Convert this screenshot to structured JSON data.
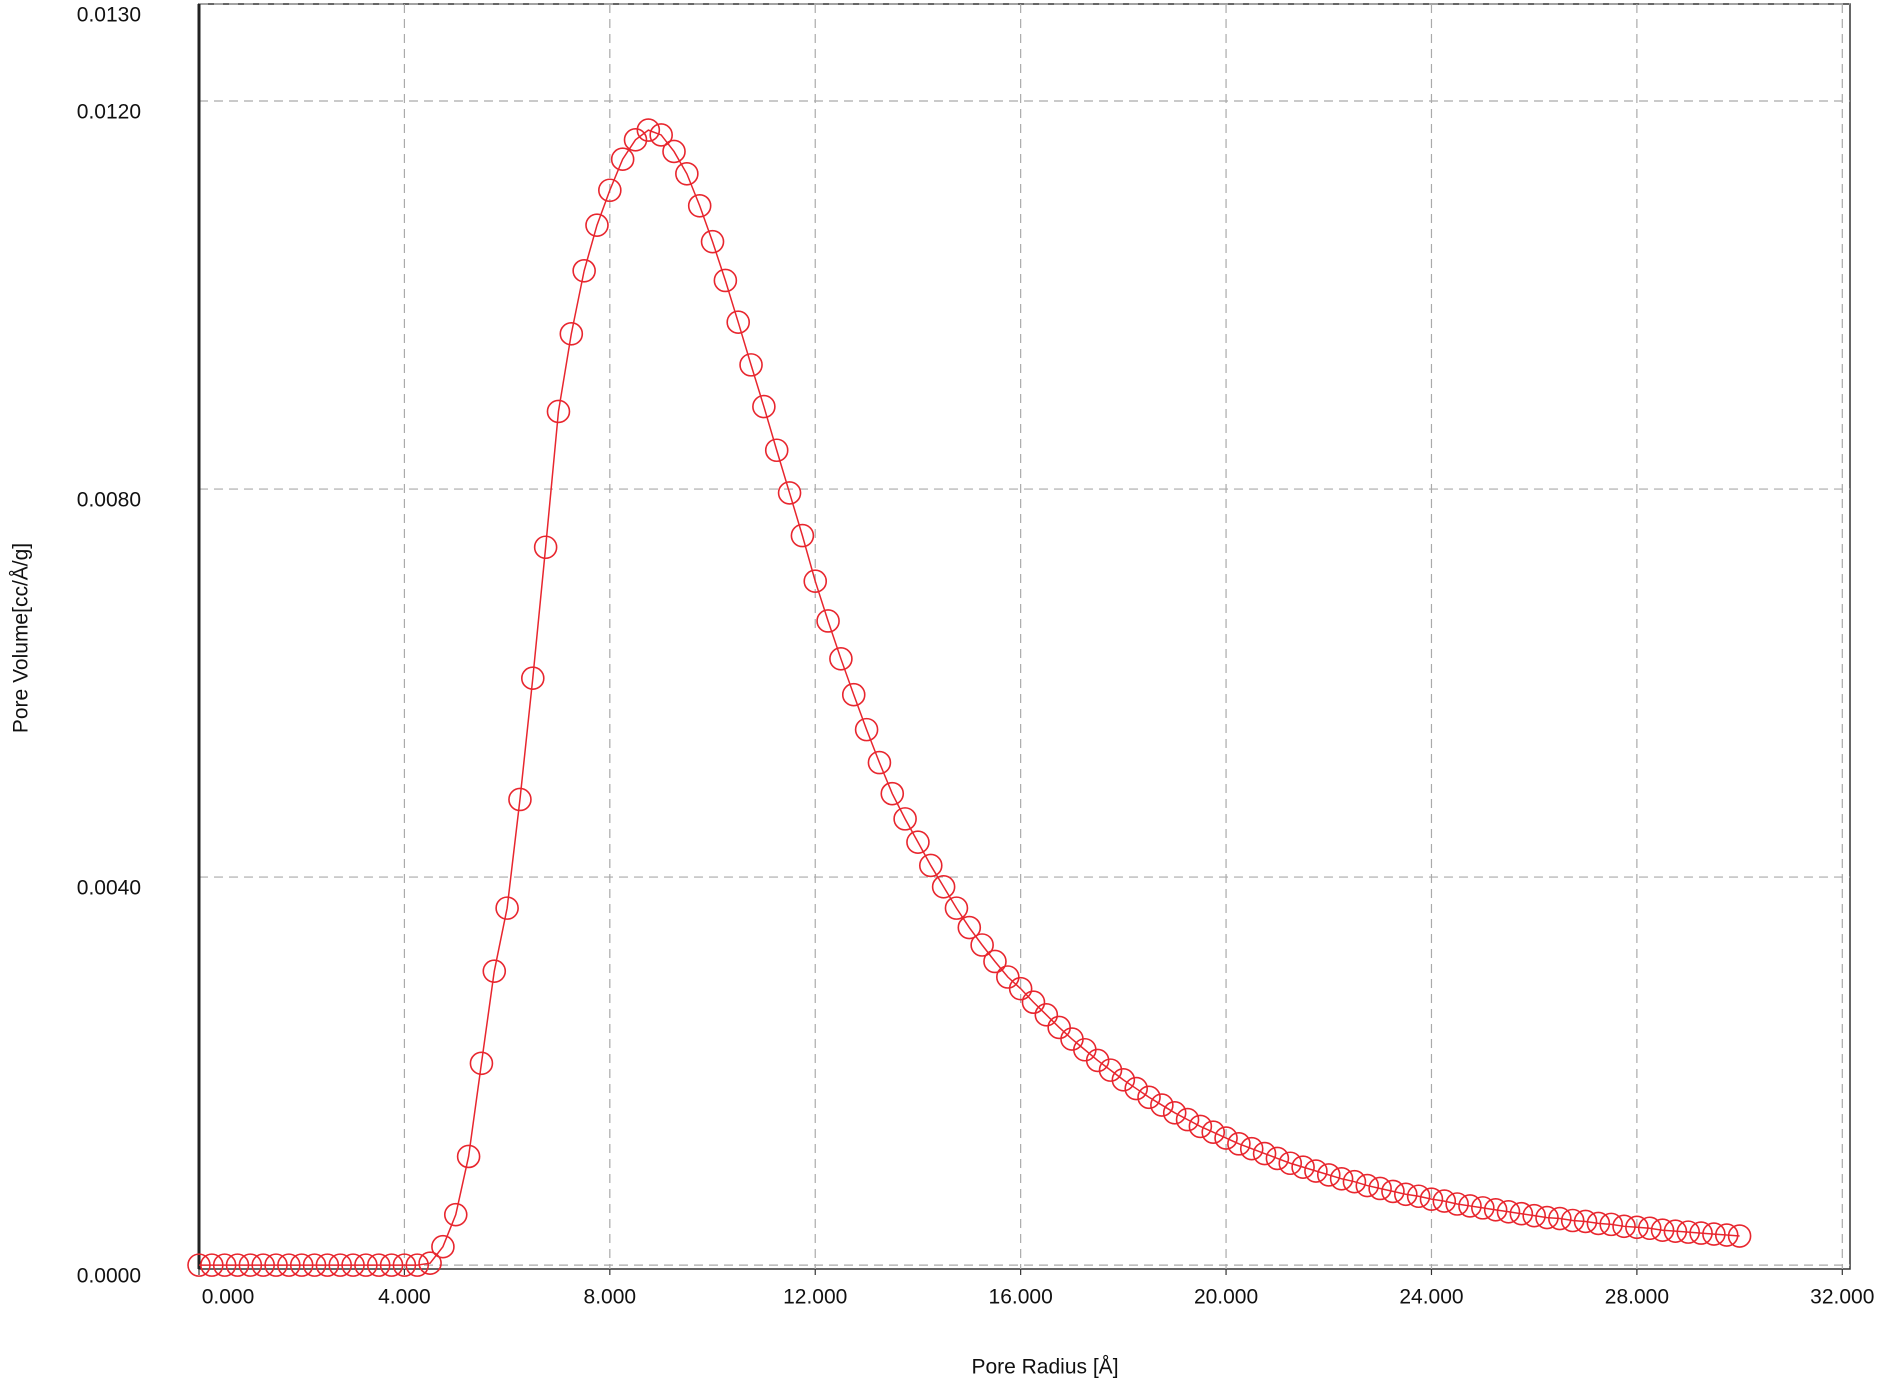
{
  "chart_data": {
    "type": "line-scatter",
    "x_label": "Pore Radius [Å]",
    "y_label": "Pore Volume[cc/Å/g]",
    "xlim": [
      0,
      32.15
    ],
    "ylim": [
      -4e-05,
      0.013
    ],
    "xticks": [
      {
        "value": 0,
        "label": "0.000"
      },
      {
        "value": 4,
        "label": "4.000"
      },
      {
        "value": 8,
        "label": "8.000"
      },
      {
        "value": 12,
        "label": "12.000"
      },
      {
        "value": 16,
        "label": "16.000"
      },
      {
        "value": 20,
        "label": "20.000"
      },
      {
        "value": 24,
        "label": "24.000"
      },
      {
        "value": 28,
        "label": "28.000"
      },
      {
        "value": 32,
        "label": "32.000"
      }
    ],
    "yticks": [
      {
        "value": 0,
        "label": "0.0000"
      },
      {
        "value": 0.004,
        "label": "0.0040"
      },
      {
        "value": 0.008,
        "label": "0.0080"
      },
      {
        "value": 0.012,
        "label": "0.0120"
      },
      {
        "value": 0.013,
        "label": "0.0130"
      }
    ],
    "grid": true,
    "color": "#e8262e",
    "x": [
      0,
      0.25,
      0.5,
      0.75,
      1,
      1.25,
      1.5,
      1.75,
      2,
      2.25,
      2.5,
      2.75,
      3,
      3.25,
      3.5,
      3.75,
      4,
      4.25,
      4.5,
      4.75,
      5,
      5.25,
      5.5,
      5.75,
      6,
      6.25,
      6.5,
      6.75,
      7,
      7.25,
      7.5,
      7.75,
      8,
      8.25,
      8.5,
      8.75,
      9,
      9.25,
      9.5,
      9.75,
      10,
      10.25,
      10.5,
      10.75,
      11,
      11.25,
      11.5,
      11.75,
      12,
      12.25,
      12.5,
      12.75,
      13,
      13.25,
      13.5,
      13.75,
      14,
      14.25,
      14.5,
      14.75,
      15,
      15.25,
      15.5,
      15.75,
      16,
      16.25,
      16.5,
      16.75,
      17,
      17.25,
      17.5,
      17.75,
      18,
      18.25,
      18.5,
      18.75,
      19,
      19.25,
      19.5,
      19.75,
      20,
      20.25,
      20.5,
      20.75,
      21,
      21.25,
      21.5,
      21.75,
      22,
      22.25,
      22.5,
      22.75,
      23,
      23.25,
      23.5,
      23.75,
      24,
      24.25,
      24.5,
      24.75,
      25,
      25.25,
      25.5,
      25.75,
      26,
      26.25,
      26.5,
      26.75,
      27,
      27.25,
      27.5,
      27.75,
      28,
      28.25,
      28.5,
      28.75,
      29,
      29.25,
      29.5,
      29.75,
      30
    ],
    "values": [
      0,
      0,
      0,
      0,
      0,
      0,
      0,
      0,
      0,
      0,
      0,
      0,
      0,
      0,
      0,
      0,
      0,
      0,
      2e-05,
      0.00019,
      0.00052,
      0.00112,
      0.00208,
      0.00303,
      0.00368,
      0.0048,
      0.00605,
      0.0074,
      0.0088,
      0.0096,
      0.01025,
      0.01072,
      0.01108,
      0.0114,
      0.0116,
      0.0117,
      0.01165,
      0.01148,
      0.01125,
      0.01092,
      0.01055,
      0.01015,
      0.00972,
      0.00928,
      0.00885,
      0.0084,
      0.00796,
      0.00752,
      0.00705,
      0.00664,
      0.00625,
      0.00588,
      0.00552,
      0.00518,
      0.00486,
      0.0046,
      0.00436,
      0.00412,
      0.0039,
      0.00368,
      0.00348,
      0.0033,
      0.00313,
      0.00297,
      0.00285,
      0.00271,
      0.00258,
      0.00245,
      0.00233,
      0.00222,
      0.00211,
      0.00201,
      0.00191,
      0.00182,
      0.00173,
      0.00165,
      0.00157,
      0.0015,
      0.00143,
      0.00137,
      0.00131,
      0.00125,
      0.0012,
      0.00115,
      0.0011,
      0.00105,
      0.00101,
      0.00097,
      0.00093,
      0.00089,
      0.00086,
      0.00082,
      0.00079,
      0.00076,
      0.00073,
      0.00071,
      0.00068,
      0.00066,
      0.00063,
      0.00061,
      0.00059,
      0.00057,
      0.00055,
      0.00053,
      0.00051,
      0.00049,
      0.00048,
      0.00046,
      0.00045,
      0.00043,
      0.00042,
      0.0004,
      0.00039,
      0.00038,
      0.00036,
      0.00035,
      0.00034,
      0.00033,
      0.00032,
      0.00031,
      0.0003
    ]
  }
}
